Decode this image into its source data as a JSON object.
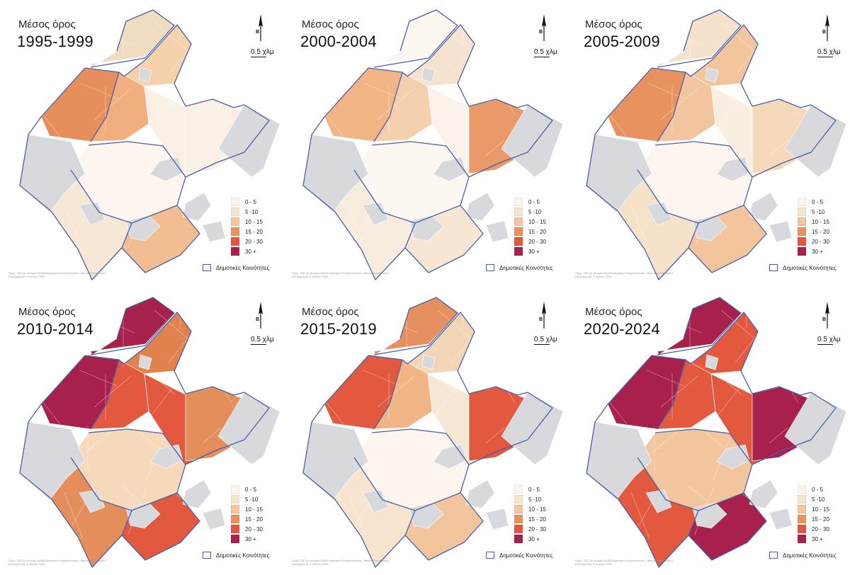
{
  "panels": [
    {
      "heading": "Μέσος όρος",
      "period": "1995-1999",
      "source_note": "Πηγή: ΤΑΠ με στοιχεία ΑΑΔΕ/Διαχείριση Κτηματολογίου | Athens Social Atlas | Επεξεργασία, 5 Ιουνίου 2025",
      "scheme": {
        "n1": "#f0dcc0",
        "n2": "#f6d2ac",
        "w": "#e68f5d",
        "nw": "#f1ae7e",
        "c": "#fdf5ef",
        "s": "#f7e7d6",
        "se": "#f3bd92",
        "e": "#fbf0e6",
        "ne": "#fbf0e6"
      }
    },
    {
      "heading": "Μέσος όρος",
      "period": "2000-2004",
      "source_note": "Πηγή: ΤΑΠ με στοιχεία ΑΑΔΕ/Διαχείριση Κτηματολογίου | Athens Social Atlas | Επεξεργασία, 5 Ιουνίου 2025",
      "scheme": {
        "n1": "#fcf6f0",
        "n2": "#f5e3d0",
        "w": "#f1b585",
        "nw": "#f4d0ae",
        "c": "#fdf7f2",
        "s": "#f8ecdf",
        "se": "#f7e6d3",
        "e": "#fbf2ea",
        "ne": "#ea9a68"
      }
    },
    {
      "heading": "Μέσος όρος",
      "period": "2005-2009",
      "source_note": "Πηγή: ΤΑΠ με στοιχεία ΑΑΔΕ/Διαχείριση Κτηματολογίου | Athens Social Atlas | Επεξεργασία, 5 Ιουνίου 2025",
      "scheme": {
        "n1": "#f5e2cc",
        "n2": "#f3c59c",
        "w": "#e8935f",
        "nw": "#f2c5a0",
        "c": "#fdf6f0",
        "s": "#f6e1c9",
        "se": "#f3c59c",
        "e": "#f9eee2",
        "ne": "#f6d9bb"
      }
    },
    {
      "heading": "Μέσος όρος",
      "period": "2010-2014",
      "source_note": "Πηγή: ΤΑΠ με στοιχεία ΑΑΔΕ/Διαχείριση Κτηματολογίου | Athens Social Atlas | Επεξεργασία, 5 Ιουνίου 2025",
      "scheme": {
        "n1": "#a8214c",
        "n2": "#e0824e",
        "w": "#a8214c",
        "nw": "#e3593f",
        "c": "#f6d8ba",
        "s": "#e48f5b",
        "se": "#e3593f",
        "e": "#e3593f",
        "ne": "#e48f5b"
      }
    },
    {
      "heading": "Μέσος όρος",
      "period": "2015-2019",
      "source_note": "Πηγή: ΤΑΠ με στοιχεία ΑΑΔΕ/Διαχείριση Κτηματολογίου | Athens Social Atlas | Επεξεργασία, 5 Ιουνίου 2025",
      "scheme": {
        "n1": "#e69062",
        "n2": "#f3d6b6",
        "w": "#e3593f",
        "nw": "#f1b585",
        "c": "#fdf5ee",
        "s": "#f7e5d0",
        "se": "#f3c59c",
        "e": "#f7e8d6",
        "ne": "#e3593f"
      }
    },
    {
      "heading": "Μέσος όρος",
      "period": "2020-2024",
      "source_note": "Πηγή: ΤΑΠ με στοιχεία ΑΑΔΕ/Διαχείριση Κτηματολογίου | Athens Social Atlas | Επεξεργασία, 5 Ιουνίου 2025",
      "scheme": {
        "n1": "#a8214c",
        "n2": "#e3593f",
        "w": "#a8214c",
        "nw": "#e3593f",
        "c": "#f3c59c",
        "s": "#e3593f",
        "se": "#a8214c",
        "e": "#e3593f",
        "ne": "#a8214c"
      }
    }
  ],
  "north_letter": "Β",
  "scale_label": "0.5 χλμ",
  "legend": [
    {
      "label": "0 - 5",
      "color": "#fdf3ec"
    },
    {
      "label": "5 -10",
      "color": "#f6e4cf"
    },
    {
      "label": "10 - 15",
      "color": "#f5c59d"
    },
    {
      "label": "15 - 20",
      "color": "#ea915d"
    },
    {
      "label": "20 - 30",
      "color": "#e15740"
    },
    {
      "label": "30 +",
      "color": "#a8214c"
    }
  ],
  "community_label": "Δημοτικές Κοινότητες",
  "colors": {
    "boundary": "#4a60a5",
    "excluded": "#d7d9dc",
    "block_line": "#ffffff"
  }
}
